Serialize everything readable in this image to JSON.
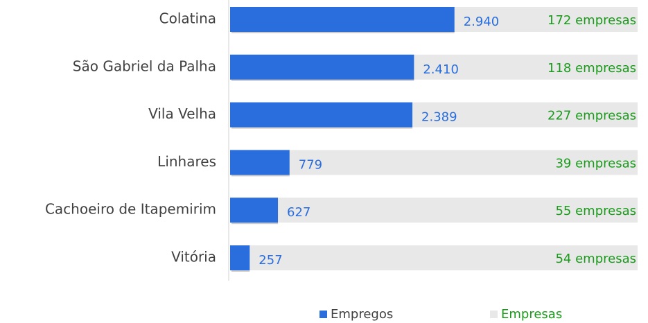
{
  "chart_data": {
    "type": "bar",
    "orientation": "horizontal",
    "categories": [
      "Colatina",
      "São Gabriel da Palha",
      "Vila Velha",
      "Linhares",
      "Cachoeiro de Itapemirim",
      "Vitória"
    ],
    "series": [
      {
        "name": "Empregos",
        "color": "#2a6ede",
        "values": [
          2940,
          2410,
          2389,
          779,
          627,
          257
        ],
        "value_labels": [
          "2.940",
          "2.410",
          "2.389",
          "779",
          "627",
          "257"
        ]
      },
      {
        "name": "Empresas",
        "color": "#e8e8e8",
        "label_color": "#1a9a1a",
        "values": [
          172,
          118,
          227,
          39,
          55,
          54
        ],
        "value_labels": [
          "172 empresas",
          "118 empresas",
          "227 empresas",
          "39 empresas",
          "55 empresas",
          "54 empresas"
        ]
      }
    ],
    "xlim": [
      0,
      5340
    ]
  }
}
